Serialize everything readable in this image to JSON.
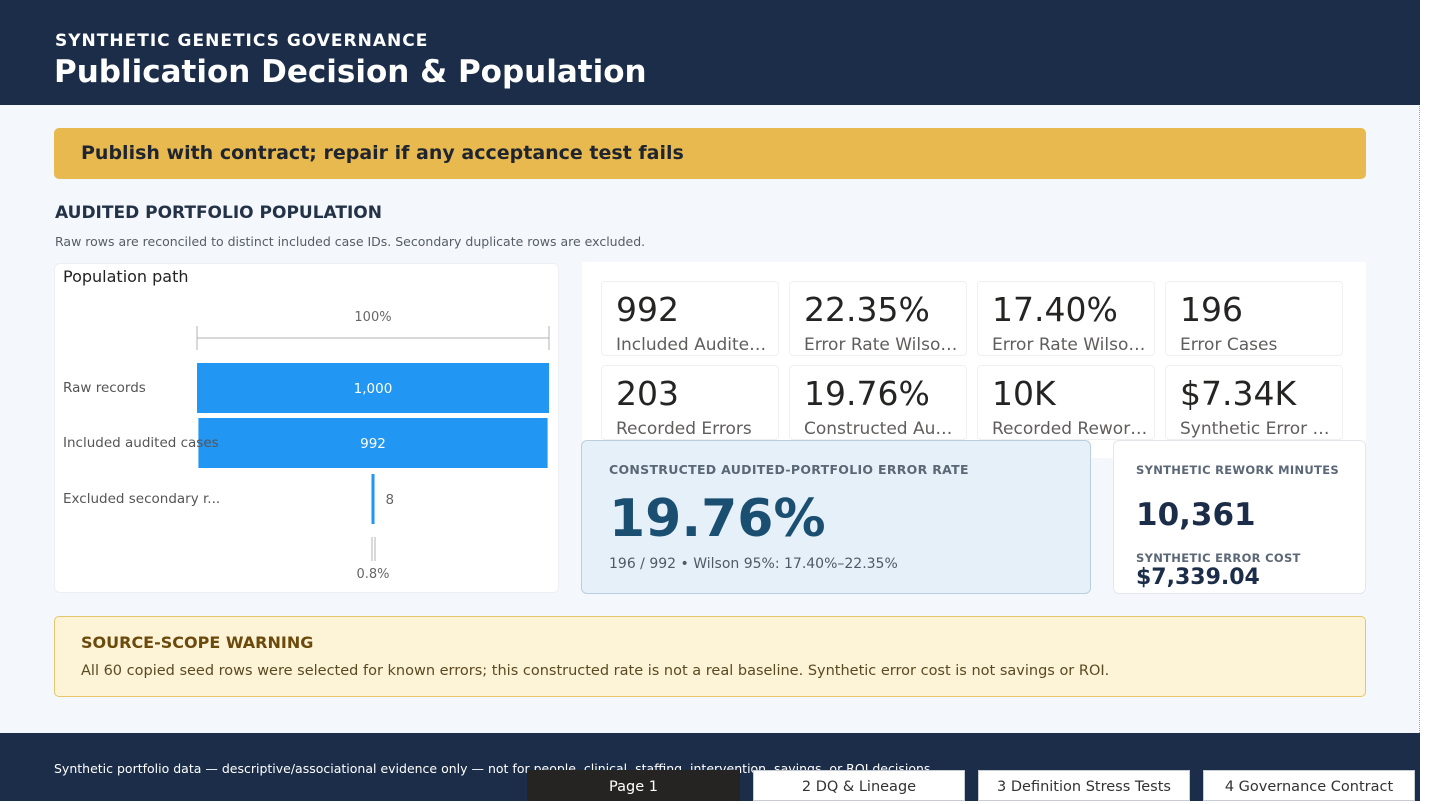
{
  "header": {
    "subtitle": "SYNTHETIC GENETICS GOVERNANCE",
    "title": "Publication Decision & Population"
  },
  "decision": "Publish with contract; repair if any acceptance test fails",
  "population": {
    "section_title": "AUDITED PORTFOLIO POPULATION",
    "section_desc": "Raw rows are reconciled to distinct included case IDs. Secondary duplicate rows are excluded."
  },
  "chart_data": {
    "type": "bar",
    "title": "Population path",
    "categories": [
      "Raw records",
      "Included audited cases",
      "Excluded secondary r..."
    ],
    "values": [
      1000,
      992,
      8
    ],
    "value_labels": [
      "1,000",
      "992",
      "8"
    ],
    "top_label": "100%",
    "bottom_label": "0.8%",
    "colors": {
      "bar": "#2196f3",
      "axis": "#b3b3b3"
    }
  },
  "cards": [
    {
      "value": "992",
      "label": "Included Audited..."
    },
    {
      "value": "22.35%",
      "label": "Error Rate Wilson..."
    },
    {
      "value": "17.40%",
      "label": "Error Rate Wilson..."
    },
    {
      "value": "196",
      "label": "Error Cases"
    },
    {
      "value": "203",
      "label": "Recorded Errors"
    },
    {
      "value": "19.76%",
      "label": "Constructed Audi..."
    },
    {
      "value": "10K",
      "label": "Recorded Rework..."
    },
    {
      "value": "$7.34K",
      "label": "Synthetic Error C..."
    }
  ],
  "rate": {
    "caption": "CONSTRUCTED AUDITED-PORTFOLIO ERROR RATE",
    "value": "19.76%",
    "note": "196 / 992 • Wilson 95%: 17.40%–22.35%"
  },
  "rework": {
    "minutes_caption": "SYNTHETIC REWORK MINUTES",
    "minutes_value": "10,361",
    "cost_caption": "SYNTHETIC ERROR COST",
    "cost_value": "$7,339.04"
  },
  "warning": {
    "title": "SOURCE-SCOPE WARNING",
    "body": "All 60 copied seed rows were selected for known errors; this constructed rate is not a real baseline. Synthetic error cost is not savings or ROI."
  },
  "footer": {
    "text": "Synthetic portfolio data — descriptive/associational evidence only — not for people, clinical, staffing, intervention, savings, or ROI decisions."
  },
  "tabs": [
    {
      "label": "Page 1",
      "active": true
    },
    {
      "label": "2 DQ & Lineage",
      "active": false
    },
    {
      "label": "3 Definition Stress Tests",
      "active": false
    },
    {
      "label": "4 Governance Contract",
      "active": false
    }
  ]
}
